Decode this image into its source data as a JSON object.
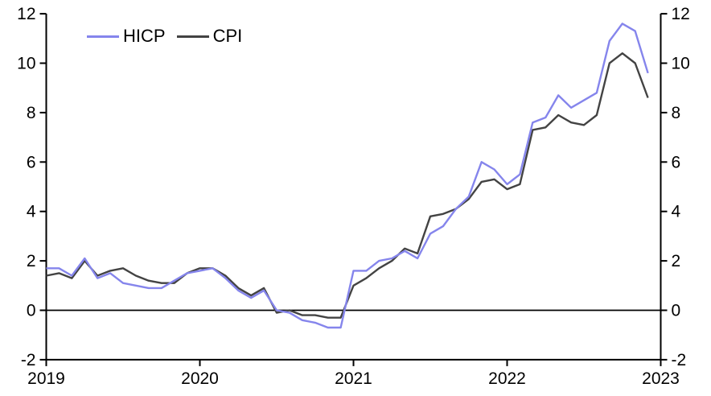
{
  "colors": {
    "hicp": "#8585EC",
    "cpi": "#434343",
    "axis": "#000000",
    "background": "#FFFFFF",
    "text": "#000000"
  },
  "legend": {
    "hicp_label": "HICP",
    "cpi_label": "CPI"
  },
  "chart_data": {
    "type": "line",
    "title": "",
    "xlabel": "",
    "ylabel": "",
    "frequency": "monthly",
    "x_start": "2019-01",
    "x_end": "2022-12",
    "x_tick_labels": [
      "2019",
      "2020",
      "2021",
      "2022",
      "2023"
    ],
    "y_ticks": [
      12,
      10,
      8,
      6,
      4,
      2,
      0,
      -2
    ],
    "y_tick_labels": [
      "12",
      "10",
      "8",
      "6",
      "4",
      "2",
      "0",
      "-2"
    ],
    "ylim": [
      -2,
      12
    ],
    "dual_axis": true,
    "grid": false,
    "zero_line": true,
    "legend_position": "top-left",
    "series": [
      {
        "name": "HICP",
        "color_key": "hicp",
        "values": [
          1.7,
          1.7,
          1.4,
          2.1,
          1.3,
          1.5,
          1.1,
          1.0,
          0.9,
          0.9,
          1.2,
          1.5,
          1.6,
          1.7,
          1.3,
          0.8,
          0.5,
          0.8,
          0.0,
          -0.1,
          -0.4,
          -0.5,
          -0.7,
          -0.7,
          1.6,
          1.6,
          2.0,
          2.1,
          2.4,
          2.1,
          3.1,
          3.4,
          4.1,
          4.6,
          6.0,
          5.7,
          5.1,
          5.5,
          7.6,
          7.8,
          8.7,
          8.2,
          8.5,
          8.8,
          10.9,
          11.6,
          11.3,
          9.6
        ]
      },
      {
        "name": "CPI",
        "color_key": "cpi",
        "values": [
          1.4,
          1.5,
          1.3,
          2.0,
          1.4,
          1.6,
          1.7,
          1.4,
          1.2,
          1.1,
          1.1,
          1.5,
          1.7,
          1.7,
          1.4,
          0.9,
          0.6,
          0.9,
          -0.1,
          0.0,
          -0.2,
          -0.2,
          -0.3,
          -0.3,
          1.0,
          1.3,
          1.7,
          2.0,
          2.5,
          2.3,
          3.8,
          3.9,
          4.1,
          4.5,
          5.2,
          5.3,
          4.9,
          5.1,
          7.3,
          7.4,
          7.9,
          7.6,
          7.5,
          7.9,
          10.0,
          10.4,
          10.0,
          8.6
        ]
      }
    ]
  }
}
